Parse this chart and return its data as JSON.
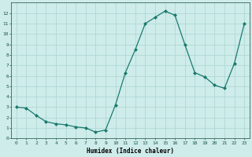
{
  "x": [
    0,
    1,
    2,
    3,
    4,
    5,
    6,
    7,
    8,
    9,
    10,
    11,
    12,
    13,
    14,
    15,
    16,
    17,
    18,
    19,
    20,
    21,
    22,
    23
  ],
  "y": [
    3.0,
    2.9,
    2.2,
    1.6,
    1.4,
    1.3,
    1.1,
    1.0,
    0.6,
    0.8,
    3.2,
    6.3,
    8.5,
    11.0,
    11.6,
    12.2,
    11.8,
    9.0,
    6.3,
    5.9,
    5.1,
    4.8,
    7.2,
    11.0
  ],
  "xlabel": "Humidex (Indice chaleur)",
  "line_color": "#1a7a6e",
  "marker": "D",
  "markersize": 2.0,
  "bg_color": "#ceecea",
  "grid_color": "#b0d8d4",
  "xlim": [
    -0.5,
    23.5
  ],
  "ylim": [
    0,
    13
  ],
  "xticks": [
    0,
    1,
    2,
    3,
    4,
    5,
    6,
    7,
    8,
    9,
    10,
    11,
    12,
    13,
    14,
    15,
    16,
    17,
    18,
    19,
    20,
    21,
    22,
    23
  ],
  "yticks": [
    0,
    1,
    2,
    3,
    4,
    5,
    6,
    7,
    8,
    9,
    10,
    11,
    12
  ]
}
